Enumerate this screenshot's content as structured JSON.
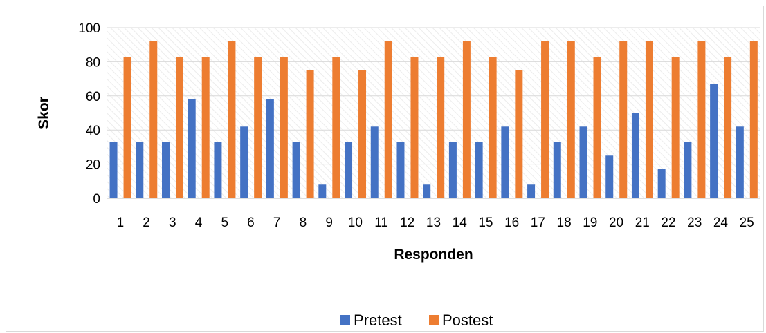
{
  "chart_data": {
    "type": "bar",
    "title": "",
    "xlabel": "Responden",
    "ylabel": "Skor",
    "ylim": [
      0,
      100
    ],
    "yticks": [
      0,
      20,
      40,
      60,
      80,
      100
    ],
    "grid": true,
    "legend_position": "bottom",
    "categories": [
      "1",
      "2",
      "3",
      "4",
      "5",
      "6",
      "7",
      "8",
      "9",
      "10",
      "11",
      "12",
      "13",
      "14",
      "15",
      "16",
      "17",
      "18",
      "19",
      "20",
      "21",
      "22",
      "23",
      "24",
      "25"
    ],
    "series": [
      {
        "name": "Pretest",
        "color": "#4472C4",
        "values": [
          33,
          33,
          33,
          58,
          33,
          42,
          58,
          33,
          8,
          33,
          42,
          33,
          8,
          33,
          33,
          42,
          8,
          33,
          42,
          25,
          50,
          17,
          33,
          67,
          42
        ]
      },
      {
        "name": "Postest",
        "color": "#ED7D31",
        "values": [
          83,
          92,
          83,
          83,
          92,
          83,
          83,
          75,
          83,
          75,
          92,
          83,
          83,
          92,
          83,
          75,
          92,
          92,
          83,
          92,
          92,
          83,
          92,
          83,
          92
        ]
      }
    ]
  }
}
